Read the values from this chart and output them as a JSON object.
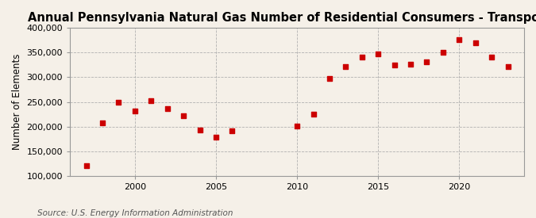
{
  "title": "Annual Pennsylvania Natural Gas Number of Residential Consumers - Transported",
  "ylabel": "Number of Elements",
  "source": "Source: U.S. Energy Information Administration",
  "background_color": "#f5f0e8",
  "dot_color": "#cc0000",
  "grid_color": "#aaaaaa",
  "years": [
    1997,
    1998,
    1999,
    2000,
    2001,
    2002,
    2003,
    2004,
    2005,
    2006,
    2010,
    2011,
    2012,
    2013,
    2014,
    2015,
    2016,
    2017,
    2018,
    2019,
    2020,
    2021,
    2022,
    2023
  ],
  "values": [
    120000,
    207000,
    249000,
    232000,
    253000,
    237000,
    222000,
    193000,
    178000,
    191000,
    201000,
    225000,
    298000,
    321000,
    341000,
    348000,
    325000,
    326000,
    332000,
    351000,
    376000,
    370000,
    341000,
    321000
  ],
  "ylim": [
    100000,
    400000
  ],
  "yticks": [
    100000,
    150000,
    200000,
    250000,
    300000,
    350000,
    400000
  ],
  "xticks": [
    2000,
    2005,
    2010,
    2015,
    2020
  ],
  "xlim": [
    1996,
    2024
  ],
  "title_fontsize": 10.5,
  "ylabel_fontsize": 8.5,
  "source_fontsize": 7.5,
  "tick_labelsize": 8
}
